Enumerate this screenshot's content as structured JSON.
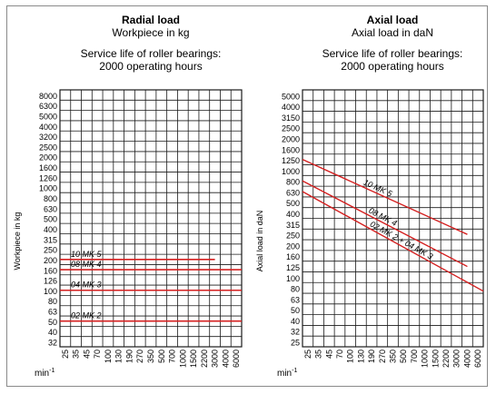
{
  "chart_data": [
    {
      "type": "line",
      "title": "Radial load",
      "subtitle": "Workpiece in kg",
      "note_line1": "Service life of roller bearings:",
      "note_line2": "2000 operating hours",
      "ylabel": "Workpiece in kg",
      "xlabel": "min-1",
      "x_ticks": [
        "25",
        "35",
        "45",
        "70",
        "100",
        "130",
        "190",
        "270",
        "350",
        "500",
        "700",
        "1000",
        "1500",
        "2200",
        "3000",
        "4000",
        "6000"
      ],
      "y_ticks": [
        "8000",
        "6300",
        "5000",
        "4000",
        "3200",
        "2500",
        "2000",
        "1600",
        "1260",
        "1000",
        "800",
        "630",
        "500",
        "400",
        "315",
        "250",
        "200",
        "160",
        "126",
        "100",
        "80",
        "63",
        "50",
        "40",
        "32"
      ],
      "y_scale": "log",
      "grid": true,
      "series": [
        {
          "name": "10 MK 5",
          "x_range": [
            "25",
            "3000"
          ],
          "value": "200"
        },
        {
          "name": "08 MK 4",
          "x_range": [
            "25",
            "6000"
          ],
          "value": "160"
        },
        {
          "name": "04 MK 3",
          "x_range": [
            "25",
            "6000"
          ],
          "value": "100"
        },
        {
          "name": "02 MK 2",
          "x_range": [
            "25",
            "6000"
          ],
          "value": "50"
        }
      ],
      "line_color": "#d42020"
    },
    {
      "type": "line",
      "title": "Axial load",
      "subtitle": "Axial load in daN",
      "note_line1": "Service life of roller bearings:",
      "note_line2": "2000 operating hours",
      "ylabel": "Axial load in daN",
      "xlabel": "min-1",
      "x_ticks": [
        "25",
        "35",
        "45",
        "70",
        "100",
        "130",
        "190",
        "270",
        "350",
        "500",
        "700",
        "1000",
        "1500",
        "2200",
        "3000",
        "4000",
        "6000"
      ],
      "y_ticks": [
        "5000",
        "4000",
        "3150",
        "2500",
        "2000",
        "1600",
        "1250",
        "1000",
        "800",
        "630",
        "500",
        "400",
        "315",
        "250",
        "200",
        "160",
        "125",
        "100",
        "80",
        "63",
        "50",
        "40",
        "32",
        "25"
      ],
      "y_scale": "log",
      "grid": true,
      "series": [
        {
          "name": "10 MK 5",
          "points": [
            [
              "25",
              "1250"
            ],
            [
              "4000",
              "250"
            ]
          ]
        },
        {
          "name": "08 MK 4",
          "points": [
            [
              "25",
              "800"
            ],
            [
              "4000",
              "125"
            ]
          ]
        },
        {
          "name": "02 MK 2 + 04 MK 3",
          "points": [
            [
              "25",
              "630"
            ],
            [
              "6000",
              "80"
            ]
          ]
        }
      ],
      "line_color": "#d42020"
    }
  ]
}
